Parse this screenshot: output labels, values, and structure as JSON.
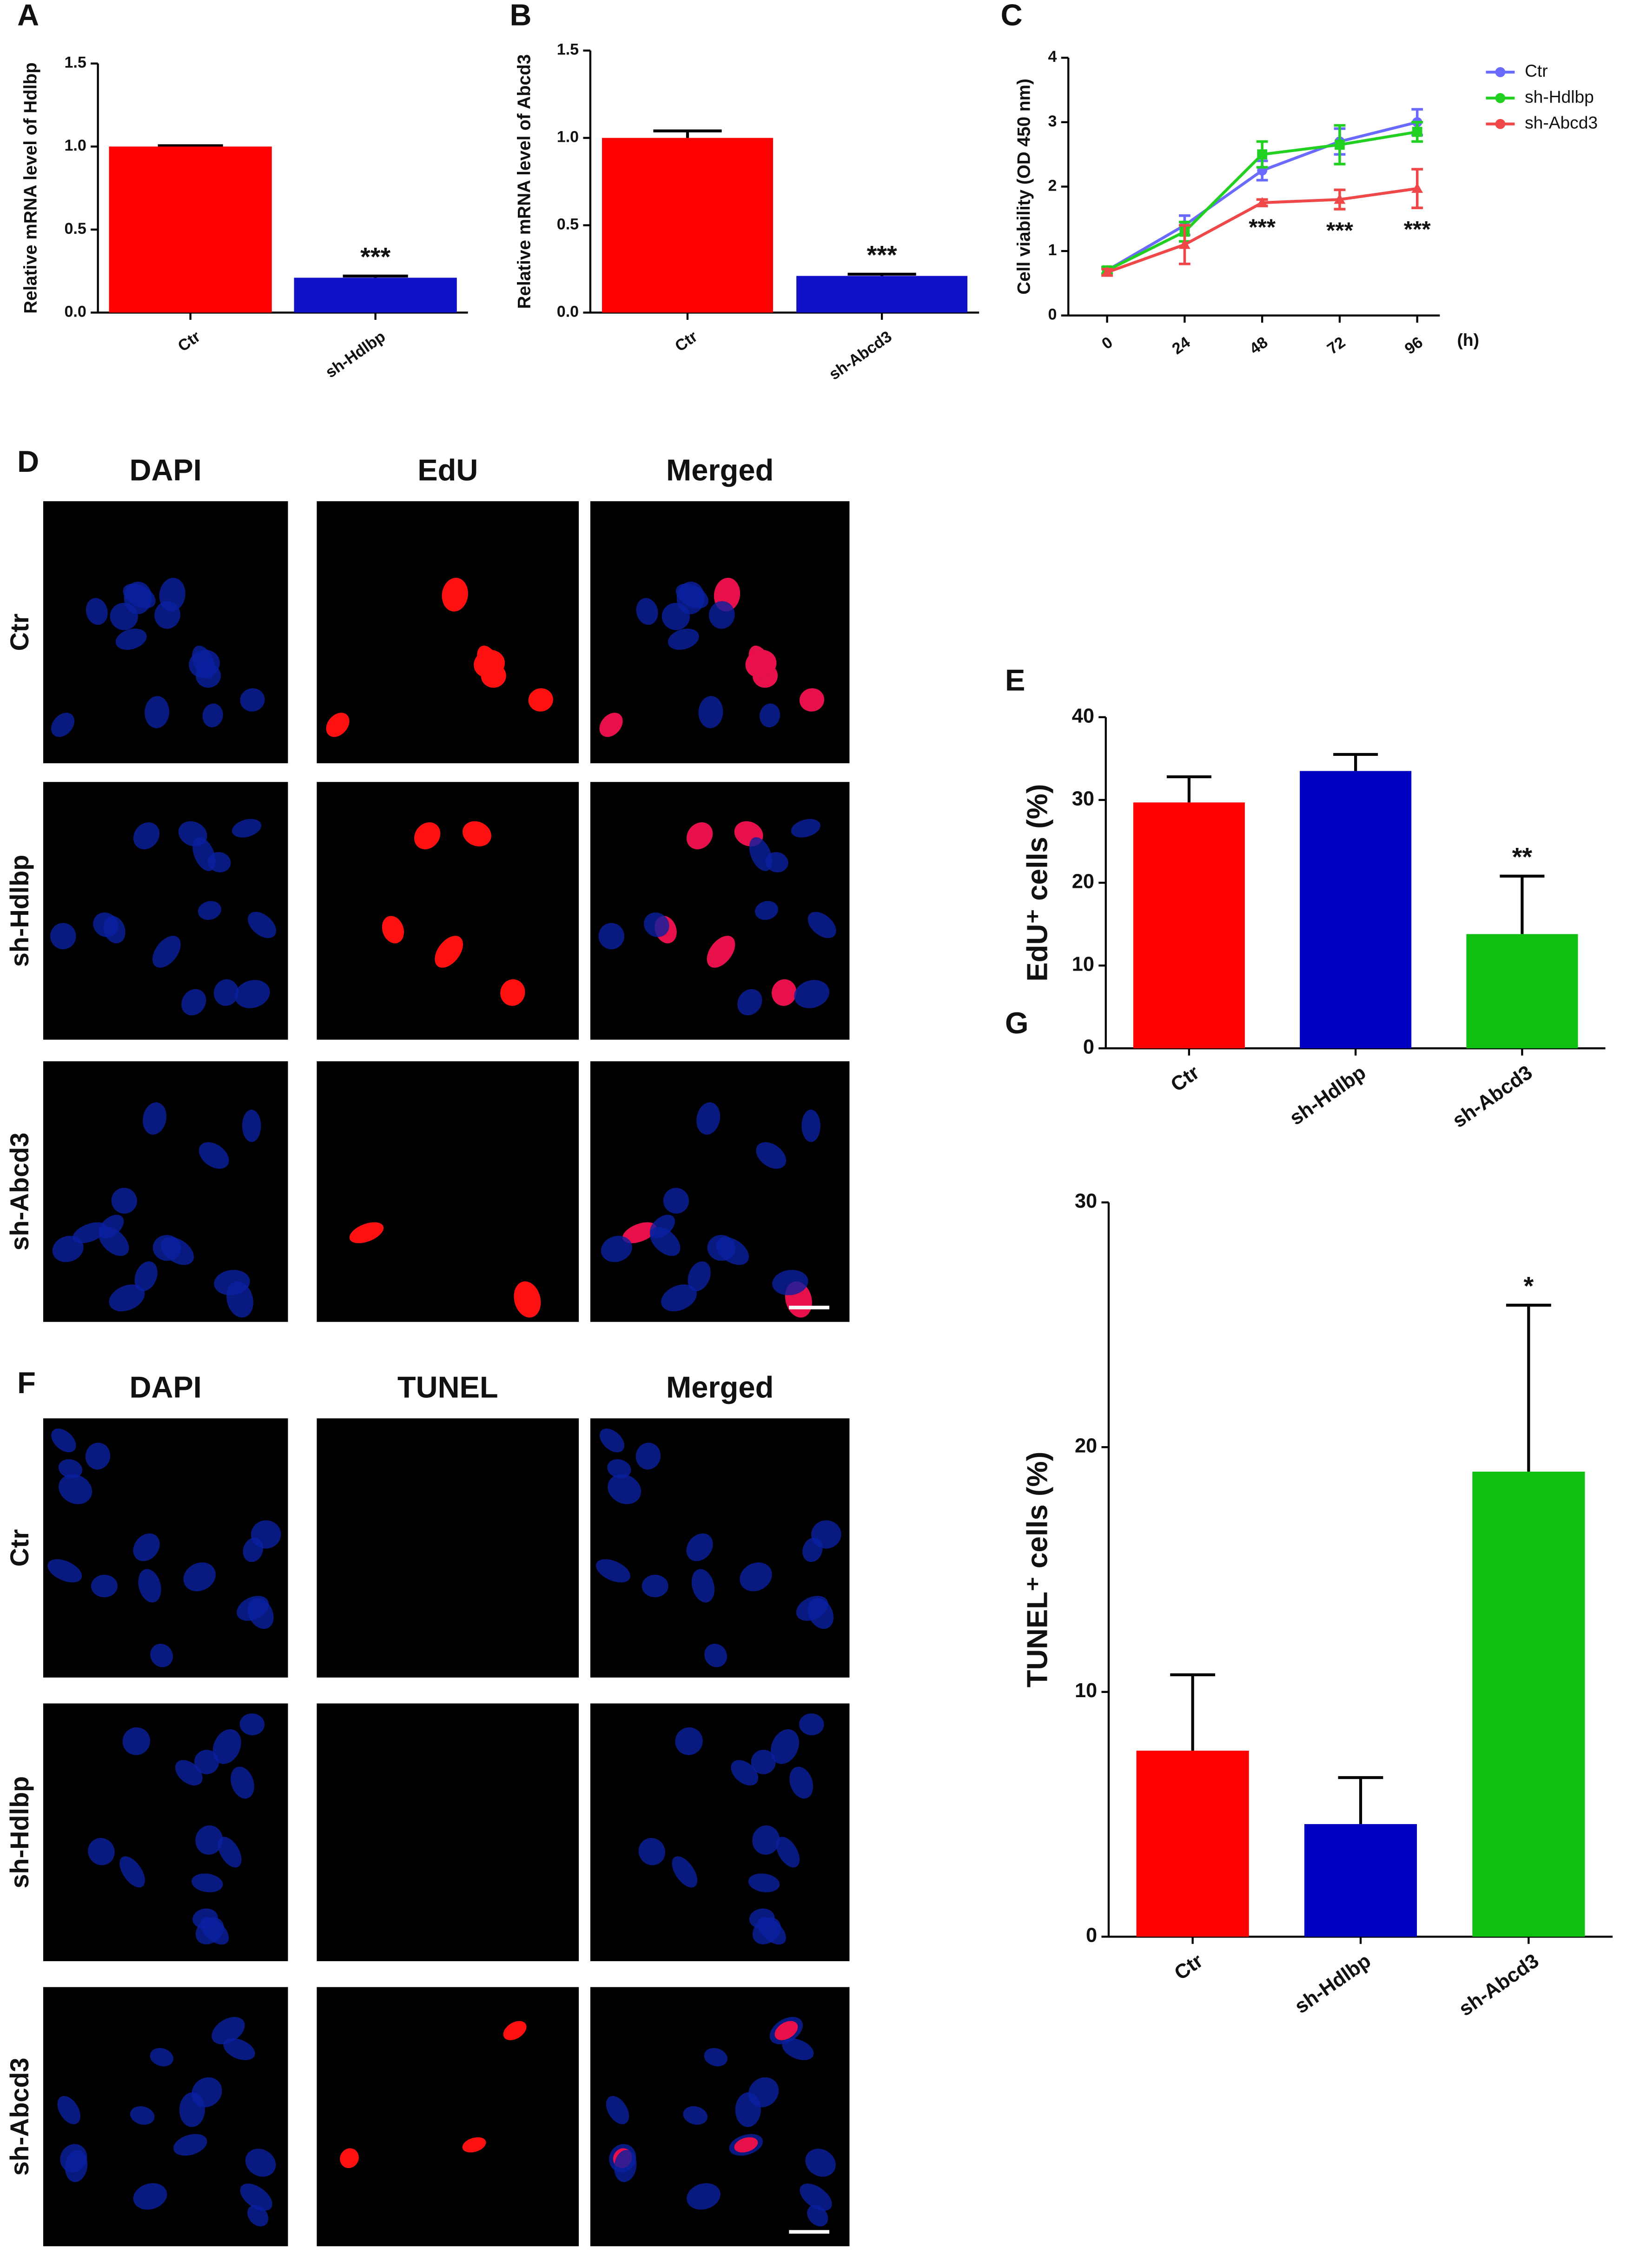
{
  "chart_data": [
    {
      "type": "bar",
      "panel_label": "A",
      "y_label": "Relative mRNA level of Hdlbp",
      "categories": [
        "Ctr",
        "sh-Hdlbp"
      ],
      "values": [
        1.0,
        0.21
      ],
      "errors": [
        0.005,
        0.01
      ],
      "colors": [
        "#ff0000",
        "#1010c8"
      ],
      "significance": [
        null,
        "***"
      ],
      "ylim": [
        0,
        1.5
      ],
      "yticks": [
        {
          "value": 0,
          "label": "0.0"
        },
        0.5,
        {
          "value": 1,
          "label": "1.0"
        },
        1.5
      ]
    },
    {
      "type": "bar",
      "panel_label": "B",
      "y_label": "Relative mRNA level of Abcd3",
      "categories": [
        "Ctr",
        "sh-Abcd3"
      ],
      "values": [
        1.0,
        0.21
      ],
      "errors": [
        0.04,
        0.01
      ],
      "colors": [
        "#ff0000",
        "#1010c8"
      ],
      "significance": [
        null,
        "***"
      ],
      "ylim": [
        0,
        1.5
      ],
      "yticks": [
        {
          "value": 0,
          "label": "0.0"
        },
        0.5,
        {
          "value": 1,
          "label": "1.0"
        },
        1.5
      ]
    },
    {
      "type": "line",
      "panel_label": "C",
      "y_label": "Cell viability (OD 450 nm)",
      "x_label": "(h)",
      "x": [
        0,
        24,
        48,
        72,
        96
      ],
      "xlim": [
        -12,
        103
      ],
      "xticks": [
        0,
        24,
        48,
        72,
        96
      ],
      "ylim": [
        0,
        4
      ],
      "yticks": [
        0,
        1,
        2,
        3,
        4
      ],
      "legend": "upper right",
      "series": [
        {
          "name": "Ctr",
          "color": "#6a6aff",
          "values": [
            0.7,
            1.4,
            2.25,
            2.7,
            3.0
          ],
          "errors": [
            0.05,
            0.15,
            0.15,
            0.2,
            0.2
          ]
        },
        {
          "name": "sh-Hdlbp",
          "color": "#22d022",
          "values": [
            0.7,
            1.3,
            2.5,
            2.65,
            2.85
          ],
          "errors": [
            0.05,
            0.15,
            0.2,
            0.3,
            0.15
          ]
        },
        {
          "name": "sh-Abcd3",
          "color": "#f04848",
          "values": [
            0.67,
            1.1,
            1.75,
            1.8,
            1.97
          ],
          "errors": [
            0.05,
            0.3,
            0.05,
            0.15,
            0.3
          ]
        }
      ],
      "significance": [
        null,
        null,
        "***",
        "***",
        "***"
      ]
    },
    {
      "type": "bar",
      "panel_label": "E",
      "y_label": "EdU⁺ cells (%)",
      "categories": [
        "Ctr",
        "sh-Hdlbp",
        "sh-Abcd3"
      ],
      "values": [
        29.7,
        33.5,
        13.8
      ],
      "errors": [
        3.1,
        2.0,
        7.0
      ],
      "colors": [
        "#ff0000",
        "#0000c0",
        "#10c010"
      ],
      "significance": [
        null,
        null,
        "**"
      ],
      "ylim": [
        0,
        40
      ],
      "yticks": [
        0,
        10,
        20,
        30,
        40
      ]
    },
    {
      "type": "bar",
      "panel_label": "G",
      "y_label": "TUNEL⁺ cells (%)",
      "categories": [
        "Ctr",
        "sh-Hdlbp",
        "sh-Abcd3"
      ],
      "values": [
        7.6,
        4.6,
        19.0
      ],
      "errors": [
        3.1,
        1.9,
        6.8
      ],
      "colors": [
        "#ff0000",
        "#0000c0",
        "#10c010"
      ],
      "significance": [
        null,
        null,
        "*"
      ],
      "ylim": [
        0,
        30
      ],
      "yticks": [
        0,
        10,
        20,
        30
      ]
    }
  ],
  "micrographs": [
    {
      "panel_label": "D",
      "columns": [
        "DAPI",
        "EdU",
        "Merged"
      ],
      "rows": [
        "Ctr",
        "sh-Hdlbp",
        "sh-Abcd3"
      ]
    },
    {
      "panel_label": "F",
      "columns": [
        "DAPI",
        "TUNEL",
        "Merged"
      ],
      "rows": [
        "Ctr",
        "sh-Hdlbp",
        "sh-Abcd3"
      ]
    }
  ]
}
